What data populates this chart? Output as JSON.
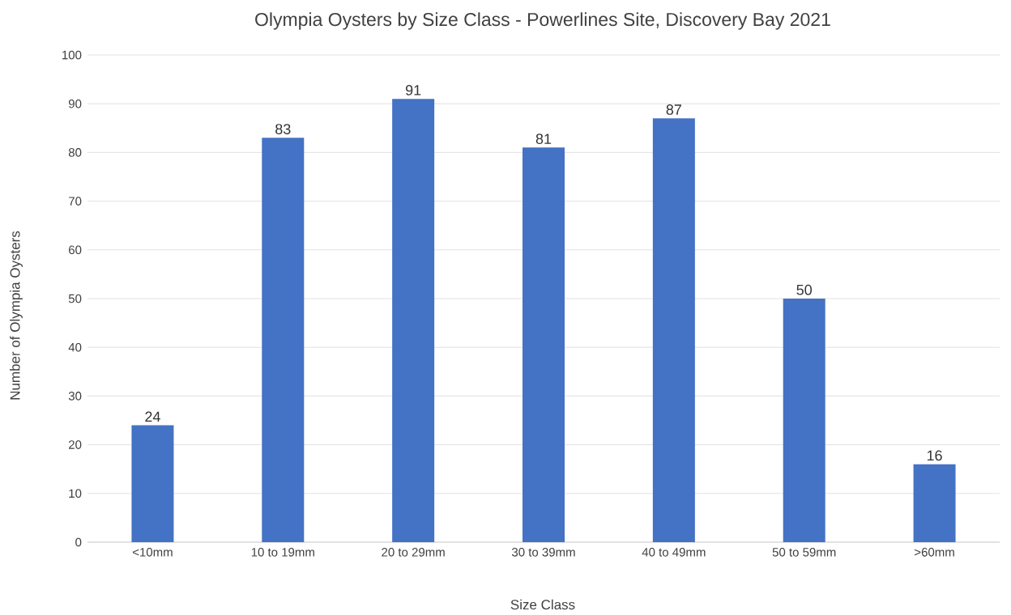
{
  "chart_data": {
    "type": "bar",
    "title": "Olympia Oysters by Size Class - Powerlines Site, Discovery Bay 2021",
    "xlabel": "Size Class",
    "ylabel": "Number of Olympia Oysters",
    "categories": [
      "<10mm",
      "10 to 19mm",
      "20 to 29mm",
      "30 to 39mm",
      "40 to 49mm",
      "50 to 59mm",
      ">60mm"
    ],
    "values": [
      24,
      83,
      91,
      81,
      87,
      50,
      16
    ],
    "color": "#4472c4",
    "ylim": [
      0,
      100
    ],
    "yticks": [
      0,
      10,
      20,
      30,
      40,
      50,
      60,
      70,
      80,
      90,
      100
    ],
    "grid": "y",
    "data_labels": true
  }
}
